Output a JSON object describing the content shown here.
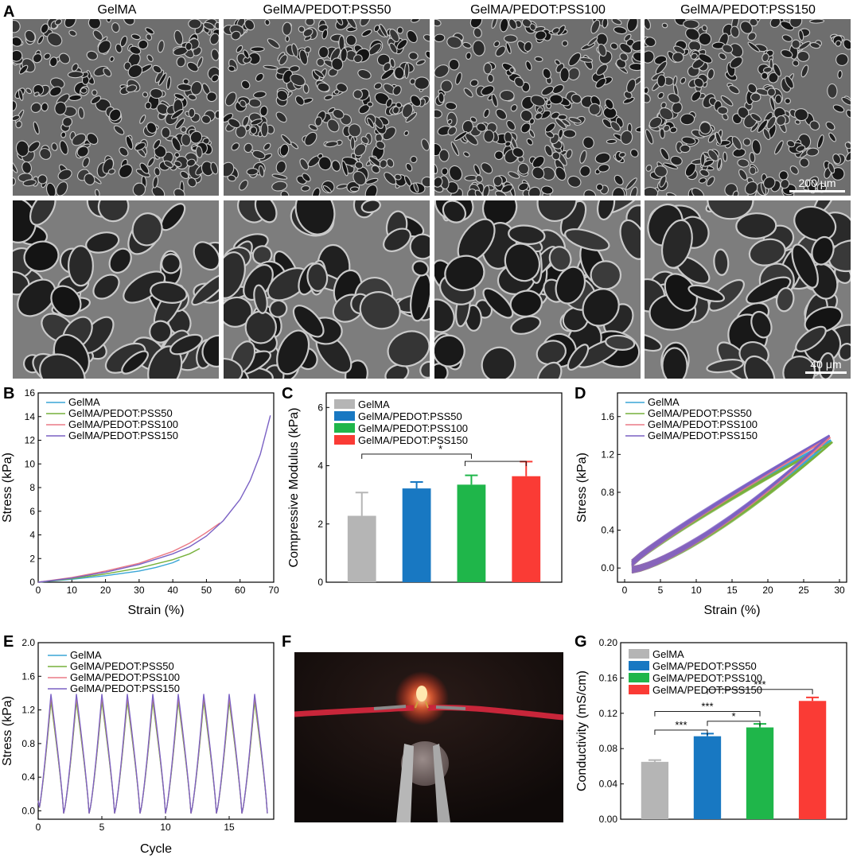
{
  "panel_letters": [
    "A",
    "B",
    "C",
    "D",
    "E",
    "F",
    "G"
  ],
  "panelA": {
    "column_titles": [
      "GelMA",
      "GelMA/PEDOT:PSS50",
      "GelMA/PEDOT:PSS100",
      "GelMA/PEDOT:PSS150"
    ],
    "scalebar_top": "200 μm",
    "scalebar_bottom": "40 μm"
  },
  "legend_labels": [
    "GelMA",
    "GelMA/PEDOT:PSS50",
    "GelMA/PEDOT:PSS100",
    "GelMA/PEDOT:PSS150"
  ],
  "colors": {
    "line_gelma": "#3aa6d6",
    "line_pss50": "#77b13c",
    "line_pss100": "#ea7a86",
    "line_pss150": "#7a61c4",
    "bar_gelma": "#b5b5b5",
    "bar_pss50": "#1878c2",
    "bar_pss100": "#1fb64a",
    "bar_pss150": "#fa3b35"
  },
  "chart_data": [
    {
      "id": "B",
      "type": "line",
      "xlabel": "Strain (%)",
      "ylabel": "Stress (kPa)",
      "xlim": [
        0,
        70
      ],
      "ylim": [
        0,
        16
      ],
      "xticks": [
        0,
        10,
        20,
        30,
        40,
        50,
        60,
        70
      ],
      "yticks": [
        0,
        2,
        4,
        6,
        8,
        10,
        12,
        14,
        16
      ],
      "legend": "top-left",
      "series": [
        {
          "name": "GelMA",
          "x": [
            0,
            10,
            20,
            30,
            35,
            40,
            42
          ],
          "y": [
            0,
            0.25,
            0.55,
            0.95,
            1.25,
            1.65,
            1.9
          ]
        },
        {
          "name": "GelMA/PEDOT:PSS50",
          "x": [
            0,
            10,
            20,
            30,
            40,
            45,
            48
          ],
          "y": [
            0,
            0.3,
            0.7,
            1.2,
            1.9,
            2.4,
            2.85
          ]
        },
        {
          "name": "GelMA/PEDOT:PSS100",
          "x": [
            0,
            10,
            20,
            30,
            40,
            45,
            50,
            54
          ],
          "y": [
            0,
            0.4,
            0.95,
            1.6,
            2.6,
            3.3,
            4.2,
            5.0
          ]
        },
        {
          "name": "GelMA/PEDOT:PSS150",
          "x": [
            0,
            10,
            20,
            30,
            40,
            45,
            50,
            55,
            60,
            63,
            66,
            69
          ],
          "y": [
            0,
            0.35,
            0.85,
            1.5,
            2.4,
            3.0,
            3.9,
            5.2,
            7.0,
            8.6,
            10.8,
            14.1
          ]
        }
      ]
    },
    {
      "id": "C",
      "type": "bar",
      "ylabel": "Compressive Modulus (kPa)",
      "ylim": [
        0,
        6.5
      ],
      "yticks": [
        0,
        2,
        4,
        6
      ],
      "legend": "top-left",
      "categories": [
        "GelMA",
        "GelMA/PEDOT:PSS50",
        "GelMA/PEDOT:PSS100",
        "GelMA/PEDOT:PSS150"
      ],
      "values": [
        2.28,
        3.22,
        3.35,
        3.64
      ],
      "errors": [
        0.8,
        0.22,
        0.32,
        0.5
      ],
      "significance": [
        "*"
      ]
    },
    {
      "id": "D",
      "type": "line",
      "xlabel": "Strain (%)",
      "ylabel": "Stress (kPa)",
      "xlim": [
        -1,
        31
      ],
      "ylim": [
        -0.15,
        1.85
      ],
      "xticks": [
        0,
        5,
        10,
        15,
        20,
        25,
        30
      ],
      "yticks": [
        0.0,
        0.4,
        0.8,
        1.2,
        1.6
      ],
      "legend": "top-left",
      "series": [
        {
          "name": "GelMA",
          "peak": [
            28.8,
            1.35
          ]
        },
        {
          "name": "GelMA/PEDOT:PSS50",
          "peak": [
            29.0,
            1.33
          ]
        },
        {
          "name": "GelMA/PEDOT:PSS100",
          "peak": [
            28.7,
            1.38
          ]
        },
        {
          "name": "GelMA/PEDOT:PSS150",
          "peak": [
            28.6,
            1.4
          ]
        }
      ]
    },
    {
      "id": "E",
      "type": "line",
      "xlabel": "Cycle",
      "ylabel": "Stress (kPa)",
      "xlim": [
        0,
        18.5
      ],
      "ylim": [
        -0.1,
        2.0
      ],
      "xticks": [
        0,
        5,
        10,
        15
      ],
      "yticks": [
        0.0,
        0.4,
        0.8,
        1.2,
        1.6,
        2.0
      ],
      "legend": "top-right",
      "series": [
        {
          "name": "GelMA",
          "peak": 1.32
        },
        {
          "name": "GelMA/PEDOT:PSS50",
          "peak": 1.3
        },
        {
          "name": "GelMA/PEDOT:PSS100",
          "peak": 1.36
        },
        {
          "name": "GelMA/PEDOT:PSS150",
          "peak": 1.39
        }
      ]
    },
    {
      "id": "G",
      "type": "bar",
      "ylabel": "Conductivity (mS/cm)",
      "ylim": [
        0,
        0.2
      ],
      "yticks": [
        0.0,
        0.04,
        0.08,
        0.12,
        0.16,
        0.2
      ],
      "legend": "top-left",
      "categories": [
        "GelMA",
        "GelMA/PEDOT:PSS50",
        "GelMA/PEDOT:PSS100",
        "GelMA/PEDOT:PSS150"
      ],
      "values": [
        0.065,
        0.094,
        0.104,
        0.134
      ],
      "errors": [
        0.002,
        0.003,
        0.004,
        0.004
      ],
      "significance": [
        "***",
        "***",
        "*",
        "***"
      ]
    }
  ]
}
